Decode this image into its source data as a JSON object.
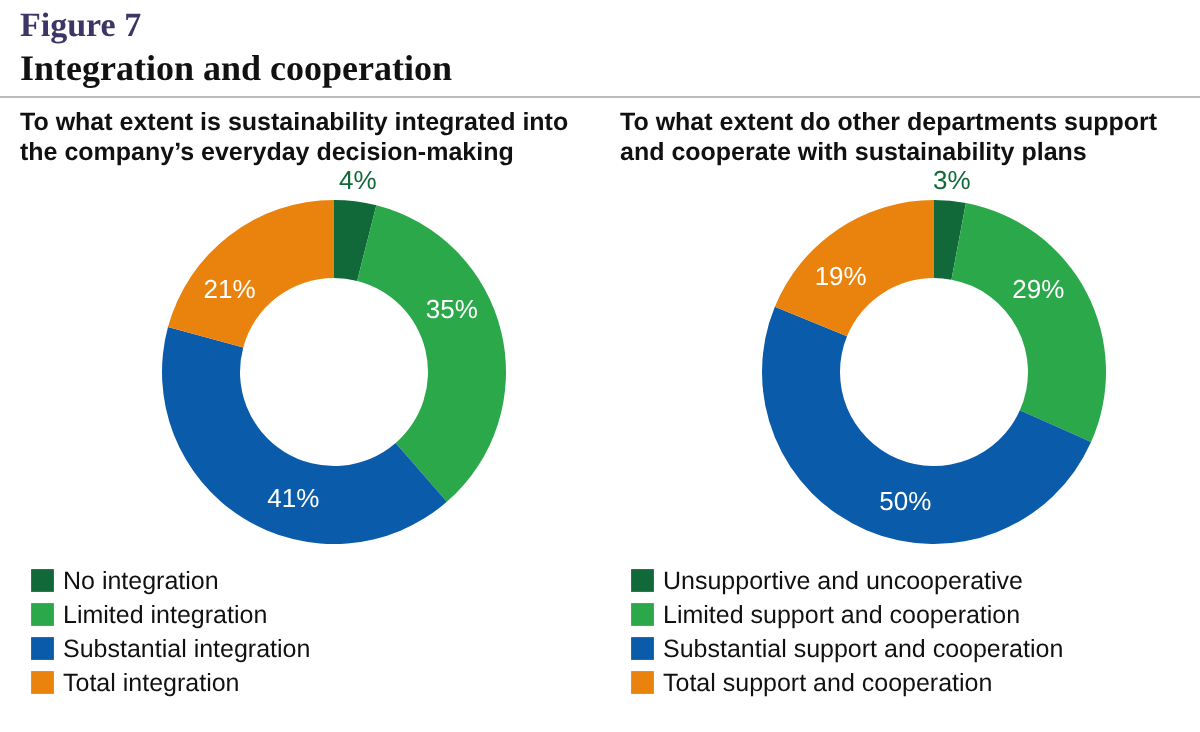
{
  "chart_data": [
    {
      "type": "other",
      "title": "Figure 7",
      "subtitle": "Integration and cooperation"
    },
    {
      "type": "donut",
      "title": "To what extent is sustainability integrated into the company’s everyday decision-making",
      "categories": [
        "No integration",
        "Limited integration",
        "Substantial integration",
        "Total integration"
      ],
      "values": [
        4,
        35,
        41,
        21
      ],
      "value_labels": [
        "4%",
        "35%",
        "41%",
        "21%"
      ],
      "colors": [
        "#11693a",
        "#2ba84a",
        "#0a5baa",
        "#ea830e"
      ],
      "legend": "bottom"
    },
    {
      "type": "donut",
      "title": "To what extent do other departments support and cooperate with sustainability plans",
      "categories": [
        "Unsupportive and uncooperative",
        "Limited support and cooperation",
        "Substantial support and cooperation",
        "Total support and cooperation"
      ],
      "values": [
        3,
        29,
        50,
        19
      ],
      "value_labels": [
        "3%",
        "29%",
        "50%",
        "19%"
      ],
      "colors": [
        "#11693a",
        "#2ba84a",
        "#0a5baa",
        "#ea830e"
      ],
      "legend": "bottom"
    }
  ]
}
